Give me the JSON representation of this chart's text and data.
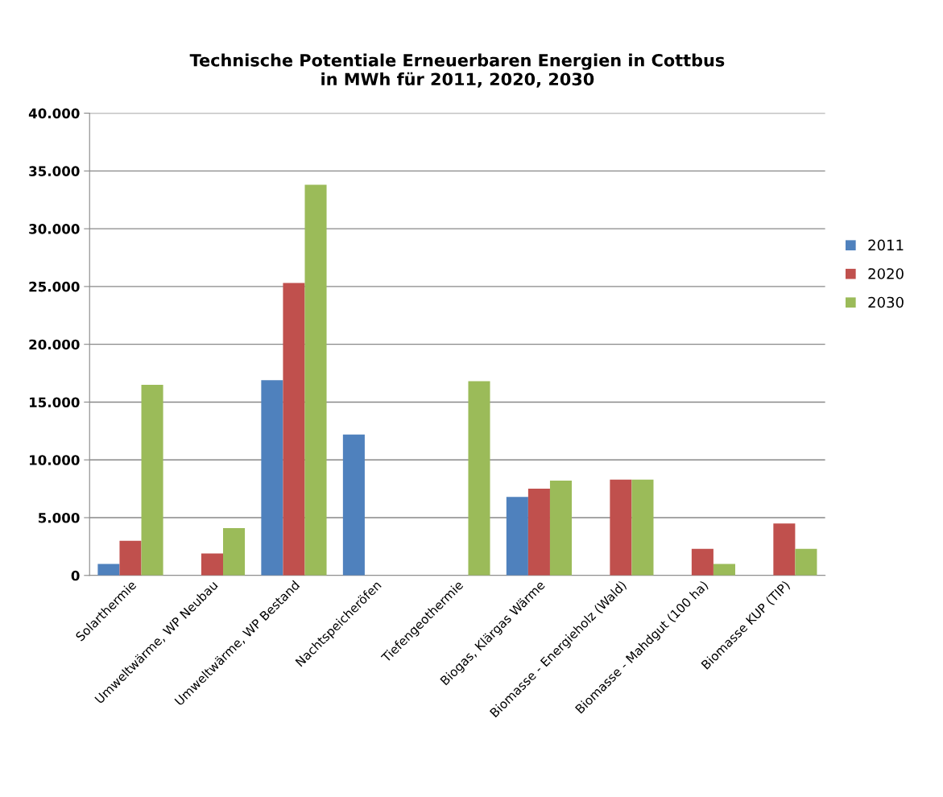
{
  "chart_data": {
    "type": "bar",
    "title": "Technische Potentiale Erneuerbaren Energien in Cottbus\nin MWh für 2011, 2020, 2030",
    "categories": [
      "Solarthermie",
      "Umweltwärme, WP Neubau",
      "Umweltwärme, WP Bestand",
      "Nachtspeicheröfen",
      "Tiefengeothermie",
      "Biogas, Klärgas Wärme",
      "Biomasse - Energieholz (Wald)",
      "Biomasse - Mahdgut (100 ha)",
      "Biomasse KUP (TIP)"
    ],
    "series": [
      {
        "name": "2011",
        "color": "#4f81bd",
        "values": [
          1000,
          null,
          16900,
          12200,
          null,
          6800,
          null,
          null,
          null
        ]
      },
      {
        "name": "2020",
        "color": "#c0504d",
        "values": [
          3000,
          1900,
          25300,
          null,
          null,
          7500,
          8300,
          2300,
          4500
        ]
      },
      {
        "name": "2030",
        "color": "#9bbb59",
        "values": [
          16500,
          4100,
          33800,
          null,
          16800,
          8200,
          8300,
          1000,
          2300
        ]
      }
    ],
    "ylim": [
      0,
      40000
    ],
    "yticks": [
      0,
      {
        "value": 5000,
        "label": "5.000"
      },
      {
        "value": 10000,
        "label": "10.000"
      },
      {
        "value": 15000,
        "label": "15.000"
      },
      {
        "value": 20000,
        "label": "20.000"
      },
      {
        "value": 25000,
        "label": "25.000"
      },
      {
        "value": 30000,
        "label": "30.000"
      },
      {
        "value": 35000,
        "label": "35.000"
      },
      {
        "value": 40000,
        "label": "40.000"
      }
    ],
    "grid": "y",
    "legend": "right"
  }
}
